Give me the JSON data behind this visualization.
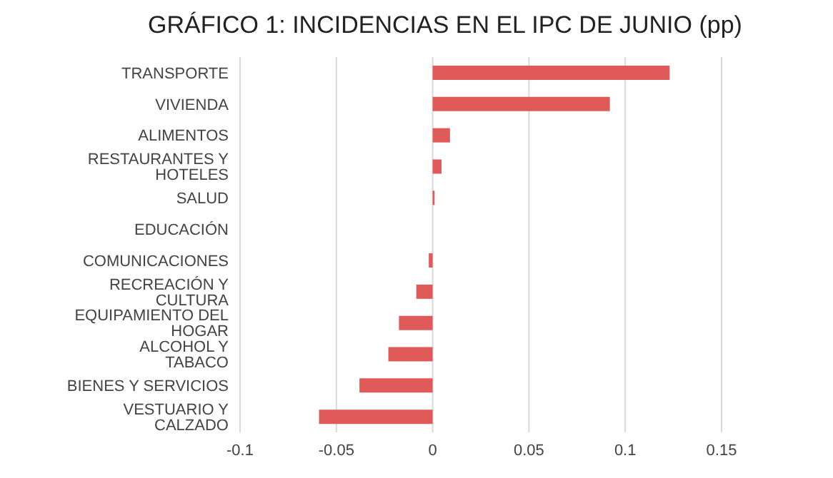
{
  "chart_data": {
    "type": "bar",
    "orientation": "horizontal",
    "title": "GRÁFICO 1: INCIDENCIAS EN EL IPC DE JUNIO (pp)",
    "categories": [
      "TRANSPORTE",
      "VIVIENDA",
      "ALIMENTOS",
      "RESTAURANTES Y HOTELES",
      "SALUD",
      "EDUCACIÓN",
      "COMUNICACIONES",
      "RECREACIÓN Y CULTURA",
      "EQUIPAMIENTO DEL HOGAR",
      "ALCOHOL Y TABACO",
      "BIENES Y SERVICIOS",
      "VESTUARIO Y CALZADO"
    ],
    "values": [
      0.123,
      0.092,
      0.009,
      0.0046,
      0.001,
      0,
      -0.002,
      -0.0085,
      -0.0175,
      -0.023,
      -0.038,
      -0.059
    ],
    "color": "#e05a5a",
    "xlim": [
      -0.1,
      0.15
    ],
    "xticks": [
      -0.1,
      -0.05,
      0,
      0.05,
      0.1,
      0.15
    ],
    "grid": "x"
  }
}
